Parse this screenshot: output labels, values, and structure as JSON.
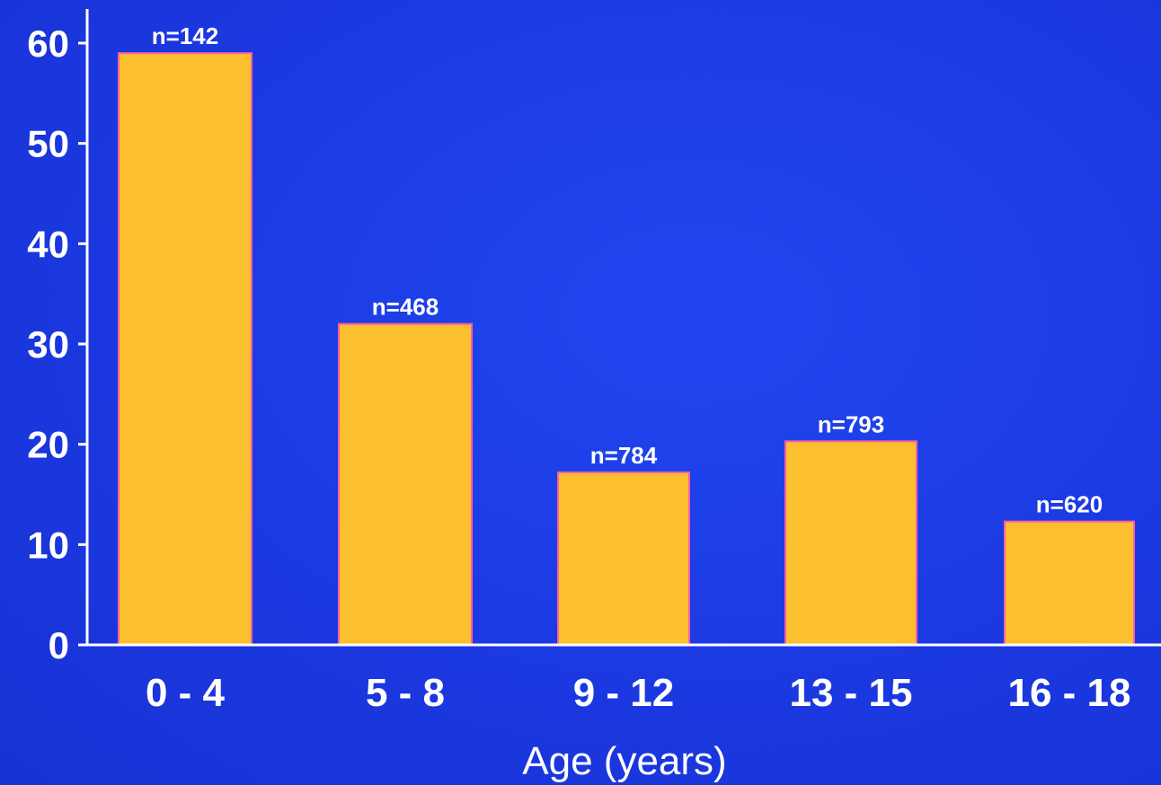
{
  "chart_data": {
    "type": "bar",
    "title": "",
    "xlabel": "Age (years)",
    "ylabel": "",
    "categories": [
      "0 - 4",
      "5 - 8",
      "9 - 12",
      "13 - 15",
      "16 - 18"
    ],
    "values": [
      59,
      32,
      17.2,
      20.3,
      12.3
    ],
    "data_labels": [
      "n=142",
      "n=468",
      "n=784",
      "n=793",
      "n=620"
    ],
    "yticks": [
      "0",
      "10",
      "20",
      "30",
      "40",
      "50",
      "60"
    ],
    "ylim": [
      0,
      60
    ],
    "grid": false,
    "legend": "none",
    "colors": {
      "background": "#1d3be6",
      "bar_fill": "#fbbf2f",
      "bar_edge": "#ff5fa0",
      "axis": "#ffffff",
      "text": "#ffffff"
    }
  }
}
